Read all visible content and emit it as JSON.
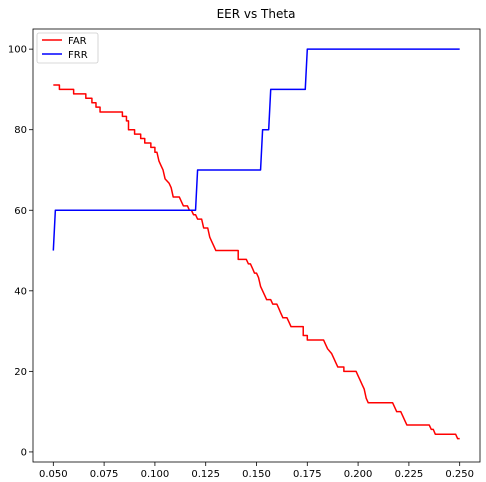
{
  "chart_data": {
    "type": "line",
    "title": "EER vs Theta",
    "xlabel": "",
    "ylabel": "",
    "xlim": [
      0.04,
      0.26
    ],
    "ylim": [
      -2.5,
      105
    ],
    "grid": false,
    "legend_position": "top-left",
    "x_ticks": [
      "0.050",
      "0.075",
      "0.100",
      "0.125",
      "0.150",
      "0.175",
      "0.200",
      "0.225",
      "0.250"
    ],
    "x_tick_values": [
      0.05,
      0.075,
      0.1,
      0.125,
      0.15,
      0.175,
      0.2,
      0.225,
      0.25
    ],
    "y_ticks": [
      "0",
      "20",
      "40",
      "60",
      "80",
      "100"
    ],
    "y_tick_values": [
      0,
      20,
      40,
      60,
      80,
      100
    ],
    "series": [
      {
        "name": "FAR",
        "color": "#ff0000",
        "points": [
          [
            0.05,
            91.1
          ],
          [
            0.053,
            91.1
          ],
          [
            0.053,
            90.0
          ],
          [
            0.06,
            90.0
          ],
          [
            0.06,
            88.9
          ],
          [
            0.066,
            88.9
          ],
          [
            0.066,
            87.8
          ],
          [
            0.069,
            87.8
          ],
          [
            0.069,
            86.7
          ],
          [
            0.071,
            86.7
          ],
          [
            0.071,
            85.6
          ],
          [
            0.073,
            85.6
          ],
          [
            0.073,
            84.4
          ],
          [
            0.084,
            84.4
          ],
          [
            0.084,
            83.3
          ],
          [
            0.086,
            83.3
          ],
          [
            0.086,
            82.2
          ],
          [
            0.087,
            82.2
          ],
          [
            0.087,
            80.0
          ],
          [
            0.09,
            80.0
          ],
          [
            0.09,
            78.9
          ],
          [
            0.093,
            78.9
          ],
          [
            0.093,
            77.8
          ],
          [
            0.095,
            77.8
          ],
          [
            0.095,
            76.7
          ],
          [
            0.098,
            76.7
          ],
          [
            0.098,
            75.6
          ],
          [
            0.1,
            75.6
          ],
          [
            0.1,
            74.4
          ],
          [
            0.101,
            74.4
          ],
          [
            0.102,
            72.2
          ],
          [
            0.103,
            71.1
          ],
          [
            0.104,
            70.0
          ],
          [
            0.105,
            67.8
          ],
          [
            0.107,
            66.7
          ],
          [
            0.108,
            65.6
          ],
          [
            0.109,
            63.3
          ],
          [
            0.112,
            63.3
          ],
          [
            0.113,
            62.2
          ],
          [
            0.114,
            61.1
          ],
          [
            0.116,
            61.1
          ],
          [
            0.117,
            60.0
          ],
          [
            0.118,
            60.0
          ],
          [
            0.119,
            58.9
          ],
          [
            0.12,
            58.9
          ],
          [
            0.121,
            57.8
          ],
          [
            0.123,
            57.8
          ],
          [
            0.124,
            55.6
          ],
          [
            0.126,
            55.6
          ],
          [
            0.127,
            53.3
          ],
          [
            0.128,
            52.2
          ],
          [
            0.129,
            51.1
          ],
          [
            0.13,
            50.0
          ],
          [
            0.141,
            50.0
          ],
          [
            0.141,
            47.8
          ],
          [
            0.145,
            47.8
          ],
          [
            0.146,
            46.7
          ],
          [
            0.147,
            46.7
          ],
          [
            0.148,
            45.6
          ],
          [
            0.149,
            44.4
          ],
          [
            0.15,
            44.4
          ],
          [
            0.151,
            43.3
          ],
          [
            0.152,
            41.1
          ],
          [
            0.153,
            40.0
          ],
          [
            0.154,
            38.9
          ],
          [
            0.155,
            37.8
          ],
          [
            0.157,
            37.8
          ],
          [
            0.158,
            36.7
          ],
          [
            0.16,
            36.7
          ],
          [
            0.161,
            35.6
          ],
          [
            0.162,
            34.4
          ],
          [
            0.163,
            33.3
          ],
          [
            0.165,
            33.3
          ],
          [
            0.166,
            32.2
          ],
          [
            0.167,
            31.1
          ],
          [
            0.173,
            31.1
          ],
          [
            0.173,
            28.9
          ],
          [
            0.175,
            28.9
          ],
          [
            0.175,
            27.8
          ],
          [
            0.183,
            27.8
          ],
          [
            0.184,
            26.7
          ],
          [
            0.185,
            25.6
          ],
          [
            0.187,
            24.4
          ],
          [
            0.188,
            23.3
          ],
          [
            0.189,
            22.2
          ],
          [
            0.19,
            21.1
          ],
          [
            0.193,
            21.1
          ],
          [
            0.193,
            20.0
          ],
          [
            0.199,
            20.0
          ],
          [
            0.2,
            18.9
          ],
          [
            0.201,
            17.8
          ],
          [
            0.202,
            16.7
          ],
          [
            0.203,
            15.6
          ],
          [
            0.204,
            13.3
          ],
          [
            0.205,
            12.2
          ],
          [
            0.217,
            12.2
          ],
          [
            0.218,
            11.1
          ],
          [
            0.219,
            10.0
          ],
          [
            0.221,
            10.0
          ],
          [
            0.222,
            8.9
          ],
          [
            0.223,
            7.8
          ],
          [
            0.224,
            6.7
          ],
          [
            0.235,
            6.7
          ],
          [
            0.236,
            5.6
          ],
          [
            0.237,
            5.6
          ],
          [
            0.238,
            4.4
          ],
          [
            0.248,
            4.4
          ],
          [
            0.249,
            3.3
          ],
          [
            0.25,
            3.3
          ]
        ]
      },
      {
        "name": "FRR",
        "color": "#0000ff",
        "points": [
          [
            0.05,
            50
          ],
          [
            0.051,
            60
          ],
          [
            0.12,
            60
          ],
          [
            0.12,
            60
          ],
          [
            0.121,
            70
          ],
          [
            0.152,
            70
          ],
          [
            0.153,
            80
          ],
          [
            0.156,
            80
          ],
          [
            0.157,
            90
          ],
          [
            0.174,
            90
          ],
          [
            0.175,
            100
          ],
          [
            0.25,
            100
          ]
        ]
      }
    ]
  }
}
